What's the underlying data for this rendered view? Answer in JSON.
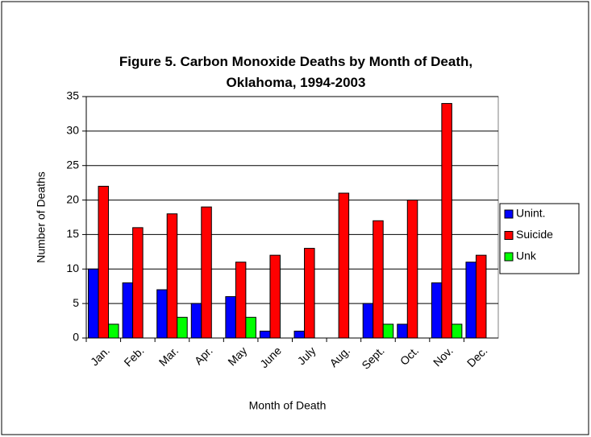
{
  "chart_data": {
    "type": "bar",
    "title": "Figure 5. Carbon Monoxide Deaths by Month of Death, Oklahoma, 1994-2003",
    "x_label": "Month of Death",
    "y_label": "Number of Deaths",
    "categories": [
      "Jan.",
      "Feb.",
      "Mar.",
      "Apr.",
      "May",
      "June",
      "July",
      "Aug.",
      "Sept.",
      "Oct.",
      "Nov.",
      "Dec."
    ],
    "series": [
      {
        "name": "Unint.",
        "color": "#0000ff",
        "values": [
          10,
          8,
          7,
          5,
          6,
          1,
          1,
          0,
          5,
          2,
          8,
          11
        ]
      },
      {
        "name": "Suicide",
        "color": "#ff0000",
        "values": [
          22,
          16,
          18,
          19,
          11,
          12,
          13,
          21,
          17,
          20,
          34,
          12
        ]
      },
      {
        "name": "Unk",
        "color": "#00ff00",
        "values": [
          2,
          0,
          3,
          0,
          3,
          0,
          0,
          0,
          2,
          0,
          2,
          0
        ]
      }
    ],
    "ylim": [
      0,
      35
    ],
    "yticks": [
      0,
      5,
      10,
      15,
      20,
      25,
      30,
      35
    ],
    "grid": true,
    "legend": "right"
  }
}
